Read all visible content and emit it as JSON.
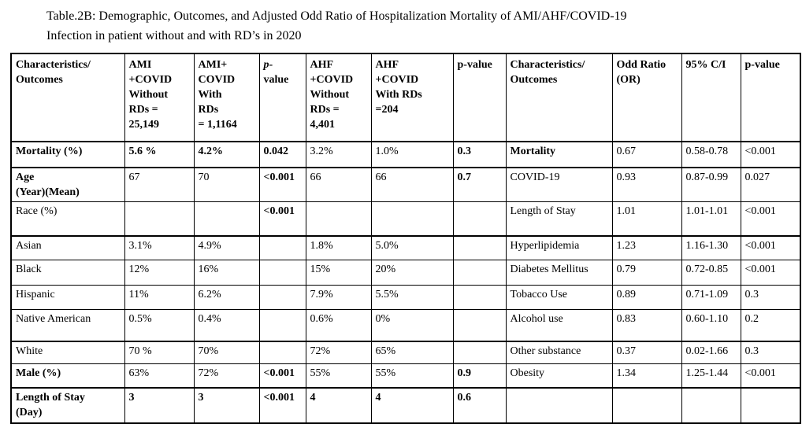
{
  "caption": "Table.2B: Demographic, Outcomes, and Adjusted Odd Ratio of Hospitalization Mortality of AMI/AHF/COVID-19\nInfection in patient without and with RD’s in 2020",
  "colors": {
    "text": "#000000",
    "background": "#ffffff",
    "border": "#000000"
  },
  "table": {
    "columns": [
      "Characteristics/\nOutcomes",
      "AMI\n+COVID\nWithout\nRDs =\n25,149",
      "AMI+\nCOVID\nWith\nRDs\n= 1,1164",
      "p-\nvalue",
      "AHF\n+COVID\nWithout\nRDs =\n4,401",
      "AHF\n+COVID\nWith RDs\n=204",
      "p-value",
      "Characteristics/\nOutcomes",
      "Odd Ratio\n(OR)",
      "95% C/I",
      "p-value"
    ],
    "rows": [
      {
        "cells": [
          "Mortality (%)",
          "5.6 %",
          "4.2%",
          "0.042",
          "3.2%",
          "1.0%",
          "0.3",
          "Mortality",
          "0.67",
          "0.58-0.78",
          "<0.001"
        ],
        "bold": [
          0,
          1,
          2,
          3,
          6,
          7
        ]
      },
      {
        "cells": [
          "Age\n(Year)(Mean)",
          "67",
          "70",
          "<0.001",
          "66",
          "66",
          "0.7",
          "COVID-19",
          "0.93",
          "0.87-0.99",
          "0.027"
        ],
        "bold": [
          0,
          3,
          6
        ]
      },
      {
        "cells": [
          "Race (%)",
          "",
          "",
          "<0.001",
          "",
          "",
          "",
          "Length of Stay",
          "1.01",
          "1.01-1.01",
          "<0.001"
        ],
        "bold": [
          3
        ]
      },
      {
        "cells": [
          "Asian",
          "3.1%",
          "4.9%",
          "",
          "1.8%",
          "5.0%",
          "",
          "Hyperlipidemia",
          "1.23",
          "1.16-1.30",
          "<0.001"
        ],
        "bold": []
      },
      {
        "cells": [
          "Black",
          "12%",
          "16%",
          "",
          "15%",
          "20%",
          "",
          "Diabetes Mellitus",
          "0.79",
          "0.72-0.85",
          "<0.001"
        ],
        "bold": []
      },
      {
        "cells": [
          "Hispanic",
          "11%",
          "6.2%",
          "",
          "7.9%",
          "5.5%",
          "",
          "Tobacco Use",
          "0.89",
          "0.71-1.09",
          "0.3"
        ],
        "bold": []
      },
      {
        "cells": [
          "Native American",
          "0.5%",
          "0.4%",
          "",
          "0.6%",
          "0%",
          "",
          "Alcohol use",
          "0.83",
          "0.60-1.10",
          "0.2"
        ],
        "bold": []
      },
      {
        "cells": [
          "White",
          "70 %",
          "70%",
          "",
          "72%",
          "65%",
          "",
          "Other substance",
          "0.37",
          "0.02-1.66",
          "0.3"
        ],
        "bold": []
      },
      {
        "cells": [
          "Male (%)",
          "63%",
          "72%",
          "<0.001",
          "55%",
          "55%",
          "0.9",
          "Obesity",
          "1.34",
          "1.25-1.44",
          "<0.001"
        ],
        "bold": [
          0,
          3,
          6
        ]
      },
      {
        "cells": [
          "Length of Stay\n(Day)",
          "3",
          "3",
          "<0.001",
          "4",
          "4",
          "0.6",
          "",
          "",
          "",
          ""
        ],
        "bold": [
          0,
          1,
          2,
          3,
          4,
          5,
          6
        ]
      }
    ]
  }
}
